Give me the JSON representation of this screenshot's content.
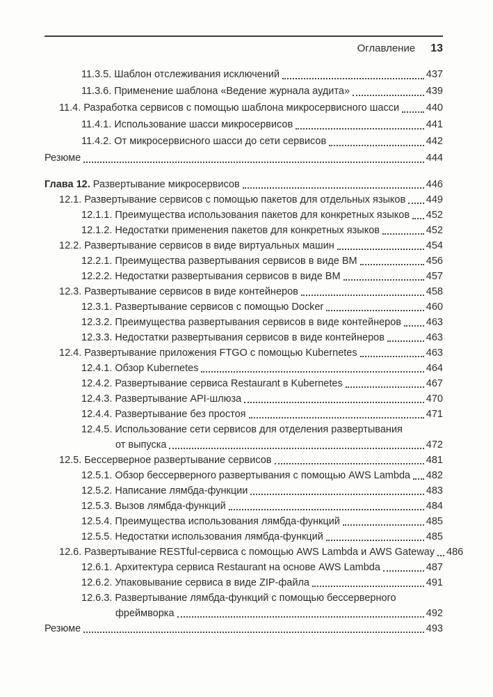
{
  "header": {
    "label": "Оглавление",
    "page_number": "13"
  },
  "colors": {
    "text": "#2c2c2c",
    "rule": "#3a3a3a",
    "leader_dots": "#474747",
    "background": "#fdfdfc"
  },
  "toc": {
    "sections": [
      {
        "entries": [
          {
            "indent": 2,
            "text": "11.3.5. Шаблон отслеживания исключений",
            "page": "437"
          },
          {
            "indent": 2,
            "text": "11.3.6. Применение шаблона «Ведение журнала аудита»",
            "page": "439"
          },
          {
            "indent": 1,
            "text": "11.4. Разработка сервисов с помощью шаблона микросервисного шасси",
            "page": "440"
          },
          {
            "indent": 2,
            "text": "11.4.1. Использование шасси микросервисов",
            "page": "441"
          },
          {
            "indent": 2,
            "text": "11.4.2. От микросервисного шасси до сети сервисов",
            "page": "442"
          },
          {
            "indent": 0,
            "text": "Резюме",
            "page": "444"
          }
        ]
      },
      {
        "entries": [
          {
            "indent": 0,
            "prefix": "Глава 12.",
            "text": " Развертывание микросервисов",
            "page": "446"
          },
          {
            "indent": 1,
            "text": "12.1. Развертывание сервисов с помощью пакетов для отдельных языков",
            "page": "449"
          },
          {
            "indent": 2,
            "text": "12.1.1. Преимущества использования пакетов для конкретных языков",
            "page": "452"
          },
          {
            "indent": 2,
            "text": "12.1.2. Недостатки применения пакетов для конкретных языков",
            "page": "452"
          },
          {
            "indent": 1,
            "text": "12.2. Развертывание сервисов в виде виртуальных машин",
            "page": "454"
          },
          {
            "indent": 2,
            "text": "12.2.1. Преимущества развертывания сервисов в виде ВМ",
            "page": "456"
          },
          {
            "indent": 2,
            "text": "12.2.2. Недостатки развертывания сервисов в виде ВМ",
            "page": "457"
          },
          {
            "indent": 1,
            "text": "12.3. Развертывание сервисов в виде контейнеров",
            "page": "458"
          },
          {
            "indent": 2,
            "text": "12.3.1. Развертывание сервисов с помощью Docker",
            "page": "460"
          },
          {
            "indent": 2,
            "text": "12.3.2. Преимущества развертывания сервисов в виде контейнеров",
            "page": "463"
          },
          {
            "indent": 2,
            "text": "12.3.3. Недостатки развертывания сервисов в виде контейнеров",
            "page": "463"
          },
          {
            "indent": 1,
            "text": "12.4. Развертывание приложения FTGO с помощью Kubernetes",
            "page": "463"
          },
          {
            "indent": 2,
            "text": "12.4.1. Обзор Kubernetes",
            "page": "464"
          },
          {
            "indent": 2,
            "text": "12.4.2. Развертывание сервиса Restaurant в Kubernetes",
            "page": "467"
          },
          {
            "indent": 2,
            "text": "12.4.3. Развертывание API-шлюза",
            "page": "470"
          },
          {
            "indent": 2,
            "text": "12.4.4. Развертывание без простоя",
            "page": "471"
          },
          {
            "indent": 2,
            "text": "12.4.5. Использование сети сервисов для отделения развертывания",
            "page": null
          },
          {
            "indent": 3,
            "text": "от выпуска",
            "page": "472"
          },
          {
            "indent": 1,
            "text": "12.5. Бессерверное развертывание сервисов",
            "page": "481"
          },
          {
            "indent": 2,
            "text": "12.5.1. Обзор бессерверного развертывания с помощью AWS Lambda",
            "page": "482"
          },
          {
            "indent": 2,
            "text": "12.5.2. Написание лямбда-функции",
            "page": "483"
          },
          {
            "indent": 2,
            "text": "12.5.3. Вызов лямбда-функций",
            "page": "484"
          },
          {
            "indent": 2,
            "text": "12.5.4. Преимущества использования лямбда-функций",
            "page": "485"
          },
          {
            "indent": 2,
            "text": "12.5.5. Недостатки использования лямбда-функций",
            "page": "485"
          },
          {
            "indent": 1,
            "text": "12.6. Развертывание RESTful-сервиса с помощью AWS Lambda и AWS Gateway",
            "page": "486"
          },
          {
            "indent": 2,
            "text": "12.6.1. Архитектура сервиса Restaurant на основе AWS Lambda",
            "page": "487"
          },
          {
            "indent": 2,
            "text": "12.6.2. Упаковывание сервиса в виде ZIP-файла",
            "page": "491"
          },
          {
            "indent": 2,
            "text": "12.6.3. Развертывание лямбда-функций с помощью бессерверного",
            "page": null
          },
          {
            "indent": 3,
            "text": "фреймворка",
            "page": "492"
          },
          {
            "indent": 0,
            "text": "Резюме",
            "page": "493"
          }
        ]
      }
    ]
  }
}
